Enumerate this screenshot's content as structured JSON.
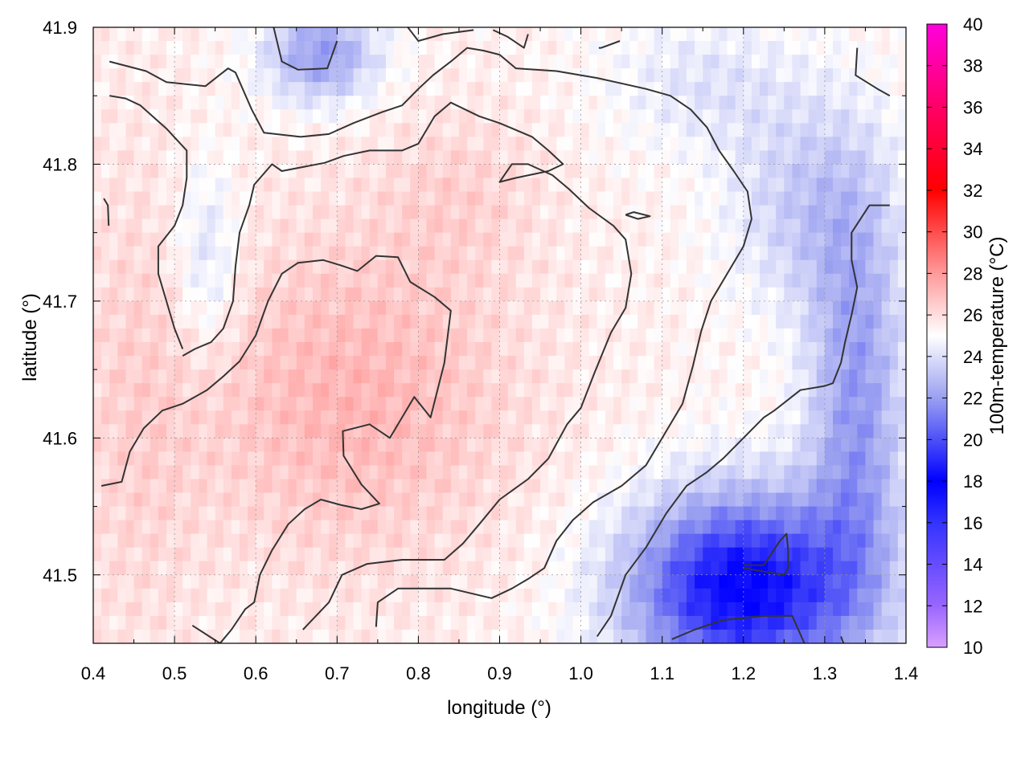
{
  "chart_data": {
    "type": "heatmap",
    "title": "",
    "xlabel": "longitude (°)",
    "ylabel": "latitude (°)",
    "colorbar_label": "100m-temperature (°C)",
    "xlim": [
      0.4,
      1.4
    ],
    "ylim": [
      41.45,
      41.9
    ],
    "x_ticks": [
      "0.4",
      "0.5",
      "0.6",
      "0.7",
      "0.8",
      "0.9",
      "1.0",
      "1.1",
      "1.2",
      "1.3",
      "1.4"
    ],
    "y_ticks": [
      "41.5",
      "41.6",
      "41.7",
      "41.8",
      "41.9"
    ],
    "colorbar_range": [
      10,
      40
    ],
    "colorbar_ticks": [
      "10",
      "12",
      "14",
      "16",
      "18",
      "20",
      "22",
      "24",
      "26",
      "28",
      "30",
      "32",
      "34",
      "36",
      "38",
      "40"
    ],
    "grid": true,
    "colormap": [
      {
        "value": 10,
        "color": "#d9a0ff"
      },
      {
        "value": 12,
        "color": "#9966ff"
      },
      {
        "value": 16,
        "color": "#3333ff"
      },
      {
        "value": 18,
        "color": "#0000ff"
      },
      {
        "value": 22,
        "color": "#9aa0f0"
      },
      {
        "value": 25,
        "color": "#ffffff"
      },
      {
        "value": 28,
        "color": "#ff9a9a"
      },
      {
        "value": 32,
        "color": "#ff0000"
      },
      {
        "value": 36,
        "color": "#ff0066"
      },
      {
        "value": 40,
        "color": "#ff00dd"
      }
    ],
    "temperature_field": {
      "base": 25.4,
      "features": [
        {
          "lon": 0.72,
          "lat": 41.63,
          "amp": 1.8,
          "sx": 0.2,
          "sy": 0.12
        },
        {
          "lon": 0.85,
          "lat": 41.78,
          "amp": 0.8,
          "sx": 0.1,
          "sy": 0.06
        },
        {
          "lon": 0.45,
          "lat": 41.62,
          "amp": 0.8,
          "sx": 0.08,
          "sy": 0.2
        },
        {
          "lon": 1.2,
          "lat": 41.49,
          "amp": -7.5,
          "sx": 0.14,
          "sy": 0.07
        },
        {
          "lon": 1.34,
          "lat": 41.62,
          "amp": -3.5,
          "sx": 0.06,
          "sy": 0.15
        },
        {
          "lon": 1.28,
          "lat": 41.77,
          "amp": -2.0,
          "sx": 0.1,
          "sy": 0.08
        },
        {
          "lon": 0.68,
          "lat": 41.88,
          "amp": -3.5,
          "sx": 0.07,
          "sy": 0.035
        },
        {
          "lon": 0.54,
          "lat": 41.73,
          "amp": -1.6,
          "sx": 0.04,
          "sy": 0.07
        },
        {
          "lon": 1.15,
          "lat": 41.86,
          "amp": -1.2,
          "sx": 0.12,
          "sy": 0.05
        }
      ]
    },
    "contours": [
      [
        [
          0.41,
          41.565
        ],
        [
          0.435,
          41.568
        ],
        [
          0.445,
          41.59
        ],
        [
          0.462,
          41.607
        ],
        [
          0.485,
          41.62
        ],
        [
          0.51,
          41.625
        ],
        [
          0.54,
          41.635
        ],
        [
          0.56,
          41.645
        ],
        [
          0.58,
          41.656
        ],
        [
          0.6,
          41.675
        ],
        [
          0.615,
          41.7
        ],
        [
          0.632,
          41.72
        ],
        [
          0.652,
          41.728
        ],
        [
          0.683,
          41.73
        ],
        [
          0.705,
          41.726
        ],
        [
          0.725,
          41.722
        ],
        [
          0.748,
          41.733
        ],
        [
          0.775,
          41.732
        ],
        [
          0.79,
          41.714
        ],
        [
          0.82,
          41.703
        ],
        [
          0.84,
          41.693
        ],
        [
          0.832,
          41.655
        ],
        [
          0.815,
          41.615
        ],
        [
          0.795,
          41.63
        ],
        [
          0.765,
          41.6
        ],
        [
          0.74,
          41.61
        ],
        [
          0.707,
          41.605
        ],
        [
          0.708,
          41.587
        ],
        [
          0.73,
          41.566
        ],
        [
          0.752,
          41.552
        ],
        [
          0.73,
          41.548
        ],
        [
          0.705,
          41.551
        ],
        [
          0.68,
          41.555
        ],
        [
          0.66,
          41.548
        ],
        [
          0.64,
          41.537
        ],
        [
          0.62,
          41.518
        ],
        [
          0.605,
          41.5
        ],
        [
          0.598,
          41.48
        ],
        [
          0.587,
          41.475
        ],
        [
          0.57,
          41.46
        ],
        [
          0.556,
          41.45
        ],
        [
          0.522,
          41.463
        ]
      ],
      [
        [
          0.658,
          41.46
        ],
        [
          0.69,
          41.48
        ],
        [
          0.706,
          41.5
        ],
        [
          0.737,
          41.508
        ],
        [
          0.78,
          41.511
        ],
        [
          0.832,
          41.511
        ],
        [
          0.855,
          41.523
        ],
        [
          0.875,
          41.537
        ],
        [
          0.9,
          41.555
        ],
        [
          0.935,
          41.57
        ],
        [
          0.96,
          41.585
        ],
        [
          0.983,
          41.61
        ],
        [
          1.0,
          41.622
        ],
        [
          1.017,
          41.648
        ],
        [
          1.037,
          41.677
        ],
        [
          1.055,
          41.695
        ],
        [
          1.062,
          41.72
        ],
        [
          1.055,
          41.745
        ],
        [
          1.04,
          41.755
        ],
        [
          1.01,
          41.768
        ],
        [
          0.985,
          41.782
        ],
        [
          0.965,
          41.792
        ],
        [
          0.935,
          41.8
        ],
        [
          0.915,
          41.8
        ],
        [
          0.9,
          41.787
        ],
        [
          0.92,
          41.79
        ],
        [
          0.96,
          41.795
        ],
        [
          0.978,
          41.8
        ],
        [
          0.96,
          41.81
        ],
        [
          0.94,
          41.82
        ],
        [
          0.9,
          41.83
        ],
        [
          0.875,
          41.835
        ],
        [
          0.84,
          41.845
        ],
        [
          0.82,
          41.835
        ],
        [
          0.8,
          41.815
        ],
        [
          0.78,
          41.81
        ],
        [
          0.74,
          41.81
        ],
        [
          0.708,
          41.806
        ],
        [
          0.685,
          41.801
        ],
        [
          0.632,
          41.795
        ],
        [
          0.62,
          41.8
        ],
        [
          0.598,
          41.785
        ],
        [
          0.592,
          41.77
        ],
        [
          0.58,
          41.75
        ],
        [
          0.575,
          41.725
        ],
        [
          0.572,
          41.7
        ],
        [
          0.56,
          41.68
        ],
        [
          0.545,
          41.67
        ],
        [
          0.525,
          41.665
        ],
        [
          0.51,
          41.66
        ]
      ],
      [
        [
          0.748,
          41.462
        ],
        [
          0.75,
          41.48
        ],
        [
          0.775,
          41.49
        ],
        [
          0.84,
          41.49
        ],
        [
          0.89,
          41.483
        ],
        [
          0.915,
          41.49
        ],
        [
          0.935,
          41.497
        ],
        [
          0.955,
          41.505
        ],
        [
          0.97,
          41.525
        ],
        [
          0.99,
          41.54
        ],
        [
          1.015,
          41.553
        ],
        [
          1.05,
          41.565
        ],
        [
          1.08,
          41.58
        ],
        [
          1.105,
          41.605
        ],
        [
          1.125,
          41.625
        ],
        [
          1.138,
          41.653
        ],
        [
          1.148,
          41.678
        ],
        [
          1.16,
          41.7
        ],
        [
          1.18,
          41.72
        ],
        [
          1.2,
          41.74
        ],
        [
          1.21,
          41.76
        ],
        [
          1.205,
          41.78
        ],
        [
          1.188,
          41.795
        ],
        [
          1.17,
          41.81
        ],
        [
          1.155,
          41.827
        ],
        [
          1.135,
          41.84
        ],
        [
          1.11,
          41.85
        ],
        [
          1.08,
          41.855
        ],
        [
          1.02,
          41.863
        ],
        [
          0.97,
          41.868
        ],
        [
          0.92,
          41.87
        ],
        [
          0.9,
          41.88
        ],
        [
          0.88,
          41.883
        ],
        [
          0.86,
          41.885
        ],
        [
          0.84,
          41.875
        ],
        [
          0.818,
          41.865
        ],
        [
          0.8,
          41.855
        ],
        [
          0.78,
          41.843
        ],
        [
          0.755,
          41.838
        ],
        [
          0.72,
          41.83
        ],
        [
          0.69,
          41.822
        ],
        [
          0.655,
          41.82
        ],
        [
          0.61,
          41.823
        ],
        [
          0.595,
          41.84
        ],
        [
          0.575,
          41.867
        ],
        [
          0.566,
          41.87
        ],
        [
          0.555,
          41.865
        ],
        [
          0.538,
          41.857
        ],
        [
          0.49,
          41.86
        ],
        [
          0.465,
          41.868
        ],
        [
          0.42,
          41.875
        ]
      ],
      [
        [
          0.42,
          41.85
        ],
        [
          0.44,
          41.848
        ],
        [
          0.458,
          41.843
        ],
        [
          0.49,
          41.826
        ],
        [
          0.515,
          41.81
        ],
        [
          0.515,
          41.79
        ],
        [
          0.51,
          41.77
        ],
        [
          0.5,
          41.755
        ],
        [
          0.48,
          41.74
        ],
        [
          0.48,
          41.72
        ],
        [
          0.49,
          41.7
        ],
        [
          0.5,
          41.68
        ],
        [
          0.51,
          41.665
        ]
      ],
      [
        [
          0.419,
          41.755
        ],
        [
          0.418,
          41.77
        ],
        [
          0.413,
          41.775
        ]
      ],
      [
        [
          0.622,
          41.9
        ],
        [
          0.632,
          41.875
        ],
        [
          0.652,
          41.869
        ],
        [
          0.688,
          41.87
        ],
        [
          0.7,
          41.89
        ]
      ],
      [
        [
          0.787,
          41.9
        ],
        [
          0.8,
          41.89
        ],
        [
          0.83,
          41.895
        ],
        [
          0.868,
          41.898
        ]
      ],
      [
        [
          0.892,
          41.898
        ],
        [
          0.91,
          41.893
        ],
        [
          0.93,
          41.885
        ],
        [
          0.935,
          41.895
        ]
      ],
      [
        [
          1.022,
          41.885
        ],
        [
          1.025,
          41.885
        ],
        [
          1.048,
          41.89
        ]
      ],
      [
        [
          1.34,
          41.885
        ],
        [
          1.338,
          41.865
        ],
        [
          1.365,
          41.855
        ],
        [
          1.38,
          41.85
        ]
      ],
      [
        [
          1.02,
          41.455
        ],
        [
          1.037,
          41.47
        ],
        [
          1.055,
          41.5
        ],
        [
          1.08,
          41.52
        ],
        [
          1.105,
          41.545
        ],
        [
          1.13,
          41.565
        ],
        [
          1.155,
          41.575
        ],
        [
          1.175,
          41.585
        ],
        [
          1.2,
          41.6
        ],
        [
          1.225,
          41.615
        ],
        [
          1.238,
          41.62
        ],
        [
          1.27,
          41.635
        ],
        [
          1.3,
          41.638
        ],
        [
          1.31,
          41.64
        ],
        [
          1.32,
          41.655
        ],
        [
          1.325,
          41.67
        ],
        [
          1.333,
          41.69
        ],
        [
          1.34,
          41.71
        ],
        [
          1.333,
          41.73
        ],
        [
          1.333,
          41.75
        ],
        [
          1.355,
          41.77
        ],
        [
          1.38,
          41.77
        ]
      ],
      [
        [
          1.055,
          41.763
        ],
        [
          1.065,
          41.765
        ],
        [
          1.085,
          41.762
        ],
        [
          1.07,
          41.76
        ],
        [
          1.055,
          41.763
        ]
      ],
      [
        [
          1.2,
          41.507
        ],
        [
          1.225,
          41.507
        ],
        [
          1.245,
          41.525
        ],
        [
          1.253,
          41.53
        ],
        [
          1.255,
          41.518
        ],
        [
          1.255,
          41.505
        ],
        [
          1.25,
          41.5
        ],
        [
          1.2,
          41.505
        ]
      ],
      [
        [
          1.112,
          41.453
        ],
        [
          1.14,
          41.46
        ],
        [
          1.175,
          41.467
        ],
        [
          1.225,
          41.47
        ],
        [
          1.26,
          41.47
        ],
        [
          1.275,
          41.45
        ]
      ],
      [
        [
          1.32,
          41.455
        ],
        [
          1.323,
          41.45
        ]
      ]
    ]
  }
}
